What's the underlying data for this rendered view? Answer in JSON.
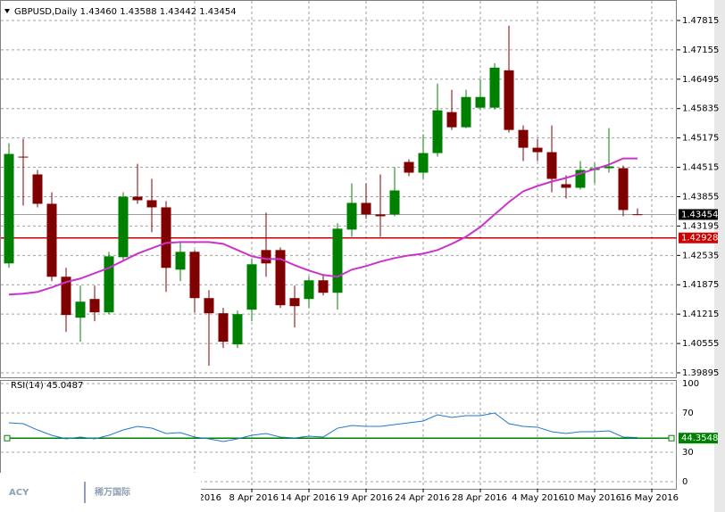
{
  "chart_data": {
    "type": "candlestick",
    "header": "GBPUSD,Daily  1.43460 1.43588 1.43442 1.43454",
    "up_color": "#008000",
    "down_color": "#800000",
    "open": [
      1.42355,
      1.44755,
      1.44355,
      1.43695,
      1.42055,
      1.41135,
      1.41555,
      1.41255,
      1.42495,
      1.43855,
      1.43775,
      1.43615,
      1.42215,
      1.42615,
      1.41575,
      1.41235,
      1.40535,
      1.41315,
      1.42655,
      1.42655,
      1.41575,
      1.41555,
      1.41975,
      1.41695,
      1.43115,
      1.43715,
      1.43455,
      1.43455,
      1.44635,
      1.44395,
      1.44835,
      1.45755,
      1.45415,
      1.45855,
      1.45855,
      1.46695,
      1.45355,
      1.44955,
      1.44855,
      1.44135,
      1.44055,
      1.44455,
      1.44495,
      1.44495,
      1.4346
    ],
    "high": [
      1.45055,
      1.45155,
      1.44455,
      1.43955,
      1.42255,
      1.41855,
      1.41855,
      1.42615,
      1.43955,
      1.44595,
      1.44255,
      1.43755,
      1.42855,
      1.42655,
      1.41755,
      1.41355,
      1.41295,
      1.42455,
      1.43495,
      1.42715,
      1.41855,
      1.42055,
      1.42115,
      1.43255,
      1.44155,
      1.44155,
      1.44355,
      1.44515,
      1.44695,
      1.45255,
      1.46395,
      1.46255,
      1.46255,
      1.46495,
      1.46855,
      1.47695,
      1.45455,
      1.45155,
      1.45455,
      1.44335,
      1.44655,
      1.44615,
      1.45395,
      1.44555,
      1.43588
    ],
    "low": [
      1.42255,
      1.43655,
      1.43615,
      1.41955,
      1.40815,
      1.40595,
      1.41055,
      1.41215,
      1.42415,
      1.43695,
      1.43055,
      1.41715,
      1.41955,
      1.41255,
      1.40055,
      1.40455,
      1.40455,
      1.41055,
      1.42055,
      1.41355,
      1.40915,
      1.41355,
      1.41635,
      1.41315,
      1.42955,
      1.43355,
      1.42955,
      1.43415,
      1.44315,
      1.44255,
      1.44755,
      1.45355,
      1.45395,
      1.45815,
      1.45815,
      1.45295,
      1.44655,
      1.44655,
      1.43955,
      1.43815,
      1.44015,
      1.44155,
      1.44395,
      1.43415,
      1.43442
    ],
    "close": [
      1.44815,
      1.44735,
      1.43695,
      1.42055,
      1.41195,
      1.41495,
      1.41255,
      1.42515,
      1.43855,
      1.43775,
      1.43615,
      1.42255,
      1.42615,
      1.41575,
      1.41235,
      1.40595,
      1.41215,
      1.42335,
      1.42355,
      1.41415,
      1.41395,
      1.41975,
      1.41695,
      1.43135,
      1.43715,
      1.43455,
      1.43415,
      1.43995,
      1.44395,
      1.44835,
      1.45795,
      1.45415,
      1.46095,
      1.46095,
      1.46755,
      1.45355,
      1.44955,
      1.44855,
      1.44255,
      1.44055,
      1.44455,
      1.44495,
      1.44535,
      1.43555,
      1.43454
    ],
    "ma": {
      "color": "#cc33cc",
      "values": [
        1.41655,
        1.41675,
        1.41715,
        1.41815,
        1.41935,
        1.42015,
        1.42135,
        1.42255,
        1.42415,
        1.42575,
        1.42695,
        1.42815,
        1.42835,
        1.42835,
        1.42835,
        1.42795,
        1.42655,
        1.42515,
        1.42455,
        1.42455,
        1.42315,
        1.42195,
        1.42095,
        1.42055,
        1.42215,
        1.42295,
        1.42395,
        1.42475,
        1.42535,
        1.42575,
        1.42655,
        1.42795,
        1.42955,
        1.43175,
        1.43455,
        1.43735,
        1.43975,
        1.44095,
        1.44195,
        1.44275,
        1.44375,
        1.44475,
        1.44575,
        1.44715,
        1.44715
      ]
    },
    "ylim": [
      1.39795,
      1.48255
    ],
    "yticks": [
      1.47815,
      1.47155,
      1.46495,
      1.45835,
      1.45175,
      1.44515,
      1.43855,
      1.43195,
      1.42535,
      1.41875,
      1.41215,
      1.40555,
      1.39895
    ],
    "bid": {
      "value": 1.43454,
      "color": "#a0a0a0"
    },
    "level_line": {
      "value": 1.42928,
      "color": "#cc0000"
    },
    "grid": true,
    "xticks": [
      {
        "value": 13,
        "label": "2016"
      },
      {
        "value": 17,
        "label": "8 Apr 2016"
      },
      {
        "value": 21,
        "label": "14 Apr 2016"
      },
      {
        "value": 25,
        "label": "19 Apr 2016"
      },
      {
        "value": 29,
        "label": "24 Apr 2016"
      },
      {
        "value": 33,
        "label": "28 Apr 2016"
      },
      {
        "value": 37,
        "label": "4 May 2016"
      },
      {
        "value": 41,
        "label": "10 May 2016"
      },
      {
        "value": 45,
        "label": "16 May 2016"
      }
    ],
    "rsi": {
      "title": "RSI(14) 45.0487",
      "color": "#1e78d0",
      "values": [
        60,
        59.1,
        52.7,
        47.3,
        43.6,
        45.5,
        43.6,
        47.3,
        52.7,
        56.4,
        54.5,
        49.1,
        50,
        45.5,
        43.6,
        40.9,
        43.6,
        47.3,
        49.1,
        45.5,
        44.5,
        46.4,
        45.5,
        54.5,
        57.3,
        56.4,
        56.4,
        58.2,
        60,
        61.8,
        68.2,
        65.5,
        67.3,
        67.3,
        70,
        59.1,
        56.4,
        55.5,
        50.9,
        49.1,
        50.9,
        50.9,
        51.8,
        45.5,
        45.0487
      ],
      "ylim": [
        0,
        100
      ],
      "yticks": [
        100,
        70,
        30,
        0
      ],
      "level": 44.3548,
      "level_color": "#008000"
    }
  },
  "logo": {
    "brand": "ACY",
    "name": "稀万国际"
  }
}
